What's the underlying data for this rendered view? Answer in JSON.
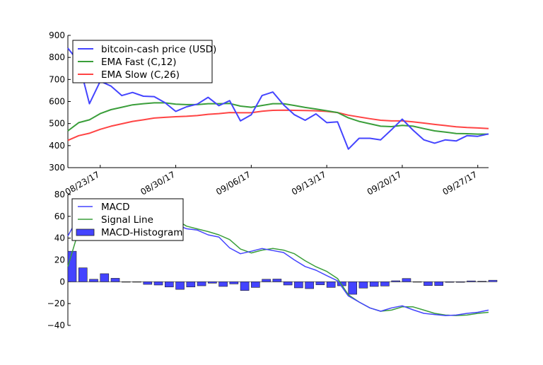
{
  "chart_data": [
    {
      "type": "line",
      "title": "",
      "xlabel": "",
      "ylabel": "",
      "x_start": "2017-08-20",
      "x_step_days": 1,
      "ylim": [
        300,
        900
      ],
      "yticks": [
        300,
        400,
        500,
        600,
        700,
        800,
        900
      ],
      "xticks": [
        {
          "index": 3,
          "label": "08/23/17"
        },
        {
          "index": 10,
          "label": "08/30/17"
        },
        {
          "index": 17,
          "label": "09/06/17"
        },
        {
          "index": 24,
          "label": "09/13/17"
        },
        {
          "index": 31,
          "label": "09/20/17"
        },
        {
          "index": 38,
          "label": "09/27/17"
        }
      ],
      "legend_position": "top-left",
      "grid": false,
      "series": [
        {
          "name": "bitcoin-cash price (USD)",
          "color": "#4444ff",
          "values": [
            842,
            780,
            590,
            692,
            670,
            627,
            641,
            624,
            622,
            595,
            555,
            576,
            588,
            619,
            581,
            604,
            512,
            540,
            627,
            643,
            585,
            540,
            515,
            544,
            504,
            508,
            384,
            433,
            433,
            426,
            472,
            520,
            470,
            426,
            411,
            426,
            421,
            445,
            442,
            453
          ]
        },
        {
          "name": "EMA Fast (C,12)",
          "color": "#3a9e3a",
          "values": [
            467,
            504,
            517,
            545,
            563,
            574,
            585,
            590,
            594,
            594,
            588,
            586,
            586,
            590,
            590,
            591,
            579,
            574,
            582,
            590,
            590,
            582,
            573,
            566,
            558,
            550,
            526,
            510,
            499,
            488,
            486,
            492,
            488,
            477,
            467,
            461,
            455,
            454,
            452,
            452
          ]
        },
        {
          "name": "EMA Slow (C,26)",
          "color": "#ff4444",
          "values": [
            424,
            445,
            456,
            474,
            488,
            499,
            510,
            517,
            525,
            528,
            531,
            533,
            536,
            542,
            545,
            550,
            549,
            549,
            556,
            560,
            561,
            560,
            559,
            558,
            555,
            550,
            538,
            530,
            522,
            515,
            512,
            512,
            508,
            502,
            496,
            491,
            485,
            482,
            480,
            477
          ]
        }
      ]
    },
    {
      "type": "bar+line",
      "title": "",
      "xlabel": "",
      "ylabel": "",
      "x_start": "2017-08-20",
      "x_step_days": 1,
      "ylim": [
        -40,
        80
      ],
      "yticks": [
        -40,
        -20,
        0,
        20,
        40,
        60,
        80
      ],
      "legend_position": "top-left",
      "grid": false,
      "series": [
        {
          "name": "MACD",
          "kind": "line",
          "color": "#4444ff",
          "values": [
            42,
            60,
            66,
            74,
            76,
            76,
            74,
            70,
            62,
            55,
            52.8,
            48.6,
            47.4,
            43,
            41,
            31,
            25.7,
            28,
            30.5,
            28.6,
            26.8,
            20,
            14,
            10.6,
            5.6,
            0.9,
            -13,
            -18.6,
            -24,
            -27,
            -24,
            -22,
            -25.7,
            -29,
            -30,
            -31,
            -30.5,
            -29,
            -28,
            -26
          ]
        },
        {
          "name": "Signal Line",
          "kind": "line",
          "color": "#3a9e3a",
          "values": [
            14,
            47,
            64,
            67,
            73,
            76,
            76,
            72,
            65,
            58,
            57,
            51,
            48.5,
            46,
            43,
            38.7,
            30,
            26.4,
            29,
            30.5,
            29,
            25.7,
            19.3,
            13.8,
            9.5,
            3,
            -12,
            -18.6,
            -24,
            -27,
            -26,
            -23,
            -23,
            -26,
            -29,
            -30.5,
            -31,
            -30.5,
            -29,
            -28
          ]
        },
        {
          "name": "MACD-Histogram",
          "kind": "bar",
          "color": "#4444ff",
          "values": [
            28,
            12.8,
            2.3,
            7.4,
            3.2,
            -0.3,
            0,
            -2.4,
            -3,
            -4.8,
            -7,
            -4.8,
            -3.7,
            -1.3,
            -4.3,
            -2,
            -8,
            -5.2,
            2.3,
            2.5,
            -3,
            -5.6,
            -6.3,
            -2.8,
            -5.2,
            -3.7,
            -11.5,
            -5.8,
            -4.3,
            -3.9,
            0.9,
            3,
            0,
            -3.5,
            -3.5,
            -0.5,
            -0.5,
            0.8,
            0.5,
            1.4
          ]
        }
      ]
    }
  ]
}
